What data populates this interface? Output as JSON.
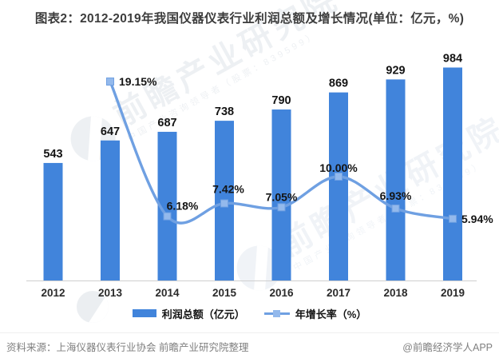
{
  "chart_data": {
    "type": "bar+line",
    "title": "图表2：2012-2019年我国仪器仪表行业利润总额及增长情况(单位：亿元，%)",
    "categories": [
      "2012",
      "2013",
      "2014",
      "2015",
      "2016",
      "2017",
      "2018",
      "2019"
    ],
    "series": [
      {
        "name": "利润总额（亿元）",
        "type": "bar",
        "color": "#4184DB",
        "values": [
          543,
          647,
          687,
          738,
          790,
          869,
          929,
          984
        ]
      },
      {
        "name": "年增长率（%）",
        "type": "line",
        "color": "#6FA0E2",
        "marker_color": "#93B9EC",
        "values": [
          null,
          19.15,
          6.18,
          7.42,
          7.05,
          10.0,
          6.93,
          5.94
        ],
        "labels": [
          null,
          "19.15%",
          "6.18%",
          "7.42%",
          "7.05%",
          "10.00%",
          "6.93%",
          "5.94%"
        ]
      }
    ],
    "left_ylim": [
      0,
      1200
    ],
    "right_ylim": [
      0,
      25
    ],
    "axes_hidden": true,
    "grid": false,
    "data_labels": true,
    "legend_position": "bottom"
  },
  "colors": {
    "axis_line": "#CFCFCF",
    "value_label": "#141414",
    "tick_label": "#2b2b2b",
    "title_text": "#3d3d3d",
    "footer_text": "#7F7F7F"
  },
  "footer": {
    "source": "资料来源：上海仪器仪表行业协会 前瞻产业研究院整理",
    "credit": "@前瞻经济学人APP"
  },
  "watermark": {
    "brand": "前瞻产业研究院",
    "tagline": "中国产业咨询领导者（股票：839599）"
  }
}
